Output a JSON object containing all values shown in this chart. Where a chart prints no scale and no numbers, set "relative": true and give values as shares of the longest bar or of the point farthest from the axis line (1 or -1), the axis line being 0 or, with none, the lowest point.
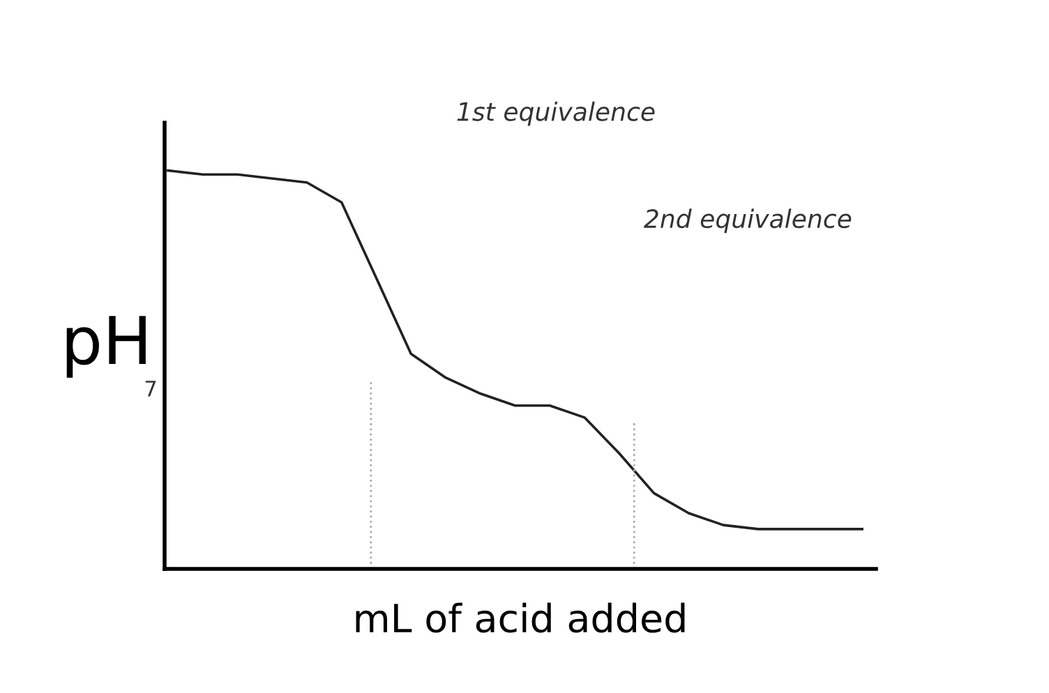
{
  "chart_data": {
    "type": "line",
    "relative": true,
    "xlabel": "mL of acid added",
    "ylabel": "pH",
    "categories": [
      null,
      null,
      null,
      null,
      null,
      null,
      null,
      null,
      null,
      null,
      null,
      null,
      null,
      null,
      null,
      null,
      null,
      null,
      null,
      null,
      null
    ],
    "series": [
      {
        "color": "#222222",
        "values": [
          1.0,
          0.99,
          0.99,
          0.98,
          0.97,
          0.92,
          0.73,
          0.54,
          0.48,
          0.44,
          0.41,
          0.41,
          0.38,
          0.29,
          0.19,
          0.14,
          0.11,
          0.1,
          0.1,
          0.1,
          0.1
        ]
      }
    ],
    "marker": "none",
    "line_style": "solid",
    "grid": false,
    "legend": false,
    "annotations": [
      "1st equivalence",
      "2nd equivalence",
      "7"
    ]
  }
}
